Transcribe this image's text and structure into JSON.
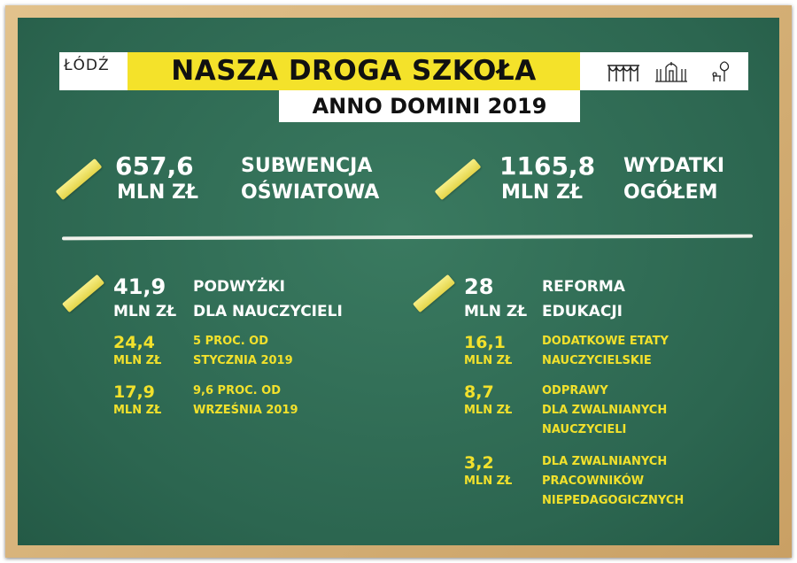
{
  "header": {
    "logo_text": "ŁÓDŹ",
    "title": "NASZA DROGA SZKOŁA",
    "subtitle": "ANNO DOMINI 2019",
    "icons": [
      "bridge-arches-icon",
      "gate-building-icon",
      "tree-bench-icon"
    ]
  },
  "top": [
    {
      "value": "657,6",
      "unit": "MLN ZŁ",
      "label1": "SUBWENCJA",
      "label2": "OŚWIATOWA"
    },
    {
      "value": "1165,8",
      "unit": "MLN ZŁ",
      "label1": "WYDATKI",
      "label2": "OGÓŁEM"
    }
  ],
  "left": {
    "value": "41,9",
    "unit": "MLN ZŁ",
    "label1": "PODWYŻKI",
    "label2": "DLA NAUCZYCIELI",
    "items": [
      {
        "value": "24,4",
        "unit": "MLN ZŁ",
        "lines": [
          "5 PROC. OD",
          "STYCZNIA 2019"
        ]
      },
      {
        "value": "17,9",
        "unit": "MLN ZŁ",
        "lines": [
          "9,6 PROC. OD",
          "WRZEŚNIA 2019"
        ]
      }
    ]
  },
  "right": {
    "value": "28",
    "unit": "MLN ZŁ",
    "label1": "REFORMA",
    "label2": "EDUKACJI",
    "items": [
      {
        "value": "16,1",
        "unit": "MLN ZŁ",
        "lines": [
          "DODATKOWE ETATY",
          "NAUCZYCIELSKIE"
        ]
      },
      {
        "value": "8,7",
        "unit": "MLN ZŁ",
        "lines": [
          "ODPRAWY",
          "DLA ZWALNIANYCH",
          "NAUCZYCIELI"
        ]
      },
      {
        "value": "3,2",
        "unit": "MLN ZŁ",
        "lines": [
          "DLA ZWALNIANYCH",
          "PRACOWNIKÓW",
          "NIEPEDAGOGICZNYCH"
        ]
      }
    ]
  },
  "colors": {
    "board": "#2e6b52",
    "frame": "#d6b57c",
    "accent": "#f4e22a",
    "text": "#ffffff"
  }
}
